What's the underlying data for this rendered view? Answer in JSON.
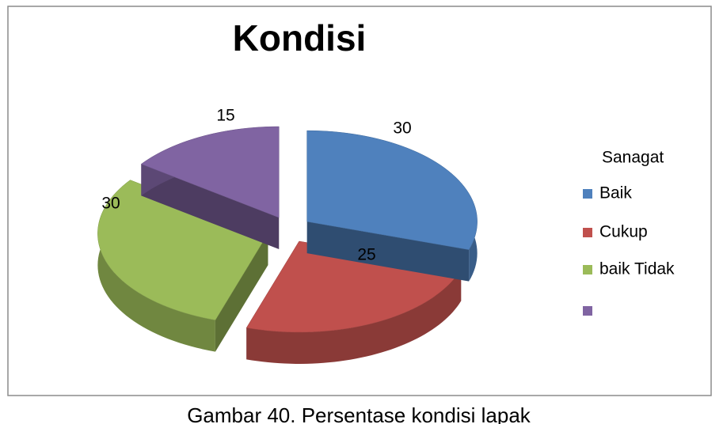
{
  "chart_data": {
    "type": "pie3d",
    "title": "Kondisi",
    "legend_heading": "Sanagat",
    "categories": [
      "Baik",
      "Cukup",
      "baik Tidak",
      null
    ],
    "values": [
      30,
      25,
      30,
      15
    ],
    "colors": [
      "#4f81bd",
      "#c0504d",
      "#9bbb59",
      "#8064a2"
    ],
    "legend": "right",
    "caption": "Gambar 40. Persentase kondisi lapak"
  }
}
